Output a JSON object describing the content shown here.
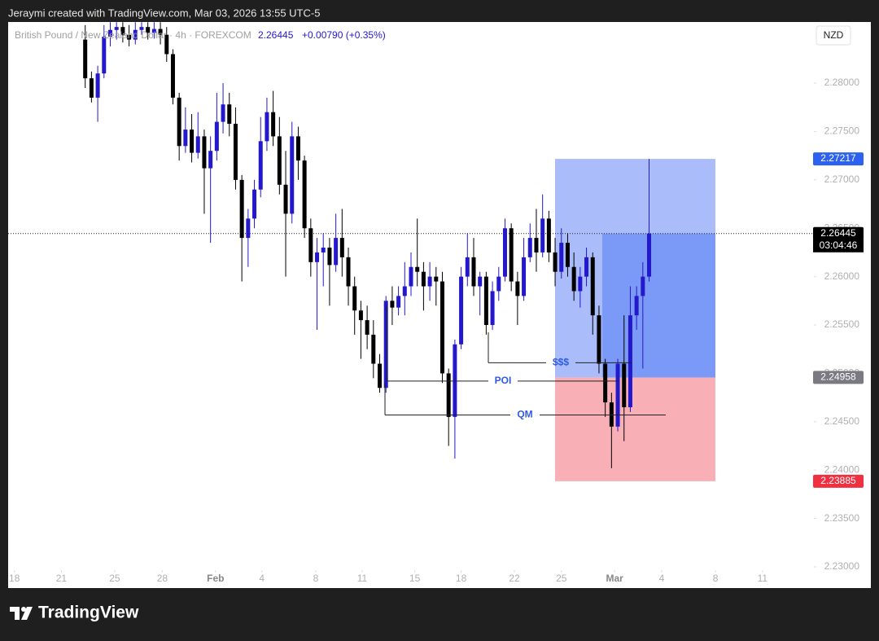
{
  "chart_data": {
    "type": "candlestick",
    "credit": "Jeraymi created with TradingView.com, Mar 03, 2026 13:55 UTC-5",
    "symbol": "British Pound / New Zealand Dollar · 4h · FOREXCOM",
    "last": 2.26445,
    "change": "+0.00790 (+0.35%)",
    "currency": "NZD",
    "brand": "TradingView",
    "countdown": "03:04:46",
    "up_color": "#2318cc",
    "down_color": "#000000",
    "ylim": [
      2.22781,
      2.28632
    ],
    "yticks": [
      {
        "value": 2.23,
        "label": "2.23000"
      },
      {
        "value": 2.235,
        "label": "2.23500"
      },
      {
        "value": 2.24,
        "label": "2.24000"
      },
      {
        "value": 2.245,
        "label": "2.24500"
      },
      {
        "value": 2.25,
        "label": "2.25000"
      },
      {
        "value": 2.255,
        "label": "2.25500"
      },
      {
        "value": 2.26,
        "label": "2.26000"
      },
      {
        "value": 2.265,
        "label": "2.26500"
      },
      {
        "value": 2.27,
        "label": "2.27000"
      },
      {
        "value": 2.275,
        "label": "2.27500"
      },
      {
        "value": 2.28,
        "label": "2.28000"
      }
    ],
    "xlim": [
      -12.3,
      116.3
    ],
    "xticks": [
      {
        "value": -11.3,
        "label": "18"
      },
      {
        "value": -3.8,
        "label": "21"
      },
      {
        "value": 4.7,
        "label": "25"
      },
      {
        "value": 12.3,
        "label": "28"
      },
      {
        "value": 20.8,
        "label": "Feb"
      },
      {
        "value": 28.2,
        "label": "4"
      },
      {
        "value": 36.8,
        "label": "8"
      },
      {
        "value": 44.2,
        "label": "11"
      },
      {
        "value": 52.6,
        "label": "15"
      },
      {
        "value": 60,
        "label": "18"
      },
      {
        "value": 68.5,
        "label": "22"
      },
      {
        "value": 76,
        "label": "25"
      },
      {
        "value": 84.5,
        "label": "Mar"
      },
      {
        "value": 92,
        "label": "4"
      },
      {
        "value": 100.6,
        "label": "8"
      },
      {
        "value": 108.1,
        "label": "11"
      }
    ],
    "open": [
      2.2845,
      2.2805,
      2.2785,
      2.281,
      2.2848,
      2.2855,
      2.2858,
      2.285,
      2.2845,
      2.2855,
      2.2858,
      2.2852,
      2.2856,
      2.285,
      2.283,
      2.2785,
      2.2735,
      2.2752,
      2.2728,
      2.2745,
      2.2712,
      2.273,
      2.276,
      2.2778,
      2.2758,
      2.27,
      2.264,
      2.266,
      2.269,
      2.274,
      2.277,
      2.2745,
      2.2695,
      2.2665,
      2.2745,
      2.272,
      2.265,
      2.2615,
      2.2625,
      2.263,
      2.2612,
      2.264,
      2.262,
      2.259,
      2.2565,
      2.2555,
      2.254,
      2.251,
      2.2485,
      2.2575,
      2.2568,
      2.258,
      2.259,
      2.261,
      2.2605,
      2.259,
      2.26,
      2.2595,
      2.25,
      2.2455,
      2.253,
      2.26,
      2.262,
      2.259,
      2.26,
      2.255,
      2.2585,
      2.26,
      2.265,
      2.2595,
      2.258,
      2.262,
      2.264,
      2.2625,
      2.266,
      2.2625,
      2.2605,
      2.2635,
      2.261,
      2.2585,
      2.26,
      2.262,
      2.256,
      2.251,
      2.247,
      2.2445,
      2.251,
      2.2465,
      2.256,
      2.258,
      2.26
    ],
    "high": [
      2.286,
      2.2812,
      2.2818,
      2.286,
      2.2863,
      2.2863,
      2.2863,
      2.286,
      2.2863,
      2.2863,
      2.2863,
      2.2863,
      2.2863,
      2.2858,
      2.2835,
      2.279,
      2.2775,
      2.2768,
      2.277,
      2.2752,
      2.2745,
      2.279,
      2.28,
      2.279,
      2.2775,
      2.2705,
      2.267,
      2.27,
      2.2765,
      2.2785,
      2.2792,
      2.2765,
      2.273,
      2.276,
      2.2755,
      2.2725,
      2.266,
      2.264,
      2.2645,
      2.264,
      2.2665,
      2.267,
      2.263,
      2.26,
      2.2575,
      2.257,
      2.2555,
      2.252,
      2.258,
      2.259,
      2.259,
      2.2615,
      2.2625,
      2.266,
      2.2615,
      2.2615,
      2.261,
      2.2605,
      2.2505,
      2.2535,
      2.261,
      2.2645,
      2.264,
      2.2605,
      2.2605,
      2.2595,
      2.261,
      2.266,
      2.2655,
      2.2605,
      2.264,
      2.2655,
      2.267,
      2.2685,
      2.2668,
      2.264,
      2.265,
      2.2645,
      2.2625,
      2.261,
      2.263,
      2.2625,
      2.257,
      2.2515,
      2.248,
      2.2515,
      2.256,
      2.259,
      2.259,
      2.2615,
      2.27217
    ],
    "low": [
      2.2795,
      2.278,
      2.276,
      2.2805,
      2.2838,
      2.2845,
      2.2842,
      2.2838,
      2.284,
      2.285,
      2.2845,
      2.2846,
      2.284,
      2.2822,
      2.2778,
      2.272,
      2.2728,
      2.2718,
      2.2722,
      2.2665,
      2.2635,
      2.272,
      2.2748,
      2.2745,
      2.269,
      2.2595,
      2.261,
      2.265,
      2.2682,
      2.273,
      2.2735,
      2.2685,
      2.26,
      2.2655,
      2.27,
      2.264,
      2.26,
      2.2545,
      2.259,
      2.257,
      2.2605,
      2.26,
      2.257,
      2.254,
      2.2515,
      2.2525,
      2.2495,
      2.248,
      2.248,
      2.255,
      2.256,
      2.256,
      2.258,
      2.259,
      2.2565,
      2.2575,
      2.257,
      2.249,
      2.2425,
      2.2412,
      2.2525,
      2.259,
      2.258,
      2.256,
      2.254,
      2.2545,
      2.2575,
      2.2595,
      2.2585,
      2.255,
      2.2575,
      2.2615,
      2.2605,
      2.262,
      2.2615,
      2.259,
      2.2598,
      2.26,
      2.2575,
      2.2568,
      2.259,
      2.254,
      2.25,
      2.2455,
      2.2402,
      2.244,
      2.243,
      2.246,
      2.2545,
      2.2505,
      2.2595
    ],
    "close": [
      2.2805,
      2.2785,
      2.281,
      2.2848,
      2.2855,
      2.2858,
      2.285,
      2.2845,
      2.2855,
      2.2858,
      2.2852,
      2.2856,
      2.285,
      2.283,
      2.2785,
      2.2735,
      2.2752,
      2.2728,
      2.2745,
      2.2712,
      2.273,
      2.276,
      2.2778,
      2.2758,
      2.27,
      2.264,
      2.266,
      2.269,
      2.274,
      2.277,
      2.2745,
      2.2695,
      2.2665,
      2.2745,
      2.272,
      2.265,
      2.2615,
      2.2625,
      2.263,
      2.2612,
      2.264,
      2.262,
      2.259,
      2.2565,
      2.2555,
      2.254,
      2.251,
      2.2485,
      2.2575,
      2.2568,
      2.258,
      2.259,
      2.261,
      2.2605,
      2.259,
      2.26,
      2.2595,
      2.25,
      2.2455,
      2.253,
      2.26,
      2.262,
      2.259,
      2.26,
      2.255,
      2.2585,
      2.26,
      2.265,
      2.2595,
      2.258,
      2.262,
      2.264,
      2.2625,
      2.266,
      2.2625,
      2.2605,
      2.2635,
      2.261,
      2.2585,
      2.26,
      2.262,
      2.256,
      2.251,
      2.247,
      2.2445,
      2.251,
      2.2465,
      2.256,
      2.258,
      2.26,
      2.26445
    ],
    "position": {
      "target": 2.27217,
      "entry": 2.24958,
      "stop": 2.23885
    },
    "levels": [
      {
        "label": "$$$",
        "value": 2.2511
      },
      {
        "label": "POI",
        "value": 2.2492
      },
      {
        "label": "QM",
        "value": 2.2457
      }
    ]
  }
}
